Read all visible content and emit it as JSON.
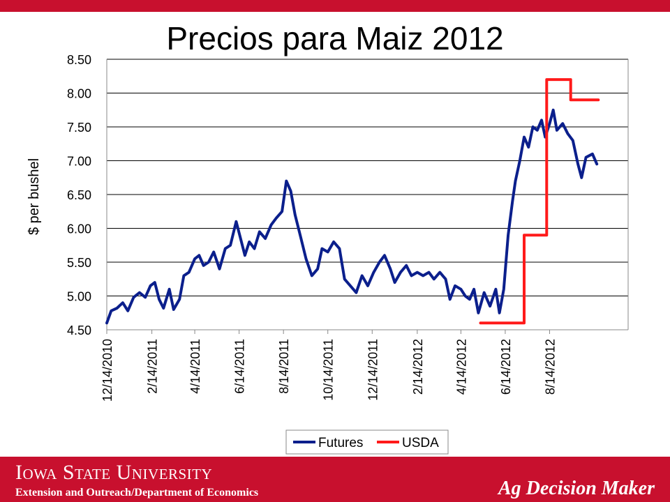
{
  "slide": {
    "title": "Precios para Maiz 2012",
    "university": "Iowa State University",
    "department": "Extension and Outreach/Department  of Economics",
    "brand": "Ag Decision Maker"
  },
  "colors": {
    "banner": "#c8102e",
    "futures": "#0b1f8c",
    "usda": "#ff1a1a",
    "grid": "#000000"
  },
  "chart_data": {
    "type": "line",
    "title": "",
    "xlabel": "",
    "ylabel": "$ per bushel",
    "ylim": [
      4.5,
      8.5
    ],
    "yticks": [
      "4.50",
      "5.00",
      "5.50",
      "6.00",
      "6.50",
      "7.00",
      "7.50",
      "8.00",
      "8.50"
    ],
    "grid": true,
    "legend_position": "bottom",
    "x_tick_labels": [
      "12/14/2010",
      "2/14/2011",
      "4/14/2011",
      "6/14/2011",
      "8/14/2011",
      "10/14/2011",
      "12/14/2011",
      "2/14/2012",
      "4/14/2012",
      "6/14/2012",
      "8/14/2012"
    ],
    "x_range": [
      "2010-12-14",
      "2012-11-30"
    ],
    "series": [
      {
        "name": "Futures",
        "color": "#0b1f8c",
        "points": [
          [
            "2010-12-14",
            4.6
          ],
          [
            "2010-12-20",
            4.78
          ],
          [
            "2010-12-28",
            4.82
          ],
          [
            "2011-01-05",
            4.9
          ],
          [
            "2011-01-12",
            4.78
          ],
          [
            "2011-01-20",
            4.98
          ],
          [
            "2011-01-28",
            5.05
          ],
          [
            "2011-02-05",
            4.98
          ],
          [
            "2011-02-12",
            5.15
          ],
          [
            "2011-02-18",
            5.2
          ],
          [
            "2011-02-24",
            4.95
          ],
          [
            "2011-03-02",
            4.82
          ],
          [
            "2011-03-10",
            5.1
          ],
          [
            "2011-03-16",
            4.8
          ],
          [
            "2011-03-24",
            4.95
          ],
          [
            "2011-03-30",
            5.3
          ],
          [
            "2011-04-06",
            5.35
          ],
          [
            "2011-04-14",
            5.55
          ],
          [
            "2011-04-20",
            5.6
          ],
          [
            "2011-04-26",
            5.45
          ],
          [
            "2011-05-03",
            5.5
          ],
          [
            "2011-05-10",
            5.65
          ],
          [
            "2011-05-18",
            5.4
          ],
          [
            "2011-05-26",
            5.7
          ],
          [
            "2011-06-02",
            5.75
          ],
          [
            "2011-06-10",
            6.1
          ],
          [
            "2011-06-16",
            5.85
          ],
          [
            "2011-06-22",
            5.6
          ],
          [
            "2011-06-28",
            5.8
          ],
          [
            "2011-07-05",
            5.7
          ],
          [
            "2011-07-12",
            5.95
          ],
          [
            "2011-07-20",
            5.85
          ],
          [
            "2011-07-28",
            6.05
          ],
          [
            "2011-08-04",
            6.15
          ],
          [
            "2011-08-12",
            6.25
          ],
          [
            "2011-08-18",
            6.7
          ],
          [
            "2011-08-24",
            6.55
          ],
          [
            "2011-08-30",
            6.2
          ],
          [
            "2011-09-06",
            5.9
          ],
          [
            "2011-09-14",
            5.55
          ],
          [
            "2011-09-22",
            5.3
          ],
          [
            "2011-09-30",
            5.4
          ],
          [
            "2011-10-06",
            5.7
          ],
          [
            "2011-10-14",
            5.65
          ],
          [
            "2011-10-22",
            5.8
          ],
          [
            "2011-10-30",
            5.7
          ],
          [
            "2011-11-06",
            5.25
          ],
          [
            "2011-11-14",
            5.15
          ],
          [
            "2011-11-22",
            5.05
          ],
          [
            "2011-11-30",
            5.3
          ],
          [
            "2011-12-08",
            5.15
          ],
          [
            "2011-12-16",
            5.35
          ],
          [
            "2011-12-24",
            5.5
          ],
          [
            "2011-12-31",
            5.6
          ],
          [
            "2012-01-08",
            5.4
          ],
          [
            "2012-01-14",
            5.2
          ],
          [
            "2012-01-22",
            5.35
          ],
          [
            "2012-01-30",
            5.45
          ],
          [
            "2012-02-06",
            5.3
          ],
          [
            "2012-02-14",
            5.35
          ],
          [
            "2012-02-22",
            5.3
          ],
          [
            "2012-03-01",
            5.35
          ],
          [
            "2012-03-08",
            5.25
          ],
          [
            "2012-03-16",
            5.35
          ],
          [
            "2012-03-24",
            5.25
          ],
          [
            "2012-03-30",
            4.95
          ],
          [
            "2012-04-06",
            5.15
          ],
          [
            "2012-04-14",
            5.1
          ],
          [
            "2012-04-20",
            5.0
          ],
          [
            "2012-04-26",
            4.95
          ],
          [
            "2012-05-02",
            5.1
          ],
          [
            "2012-05-08",
            4.75
          ],
          [
            "2012-05-16",
            5.05
          ],
          [
            "2012-05-24",
            4.85
          ],
          [
            "2012-06-01",
            5.1
          ],
          [
            "2012-06-06",
            4.75
          ],
          [
            "2012-06-12",
            5.1
          ],
          [
            "2012-06-18",
            5.9
          ],
          [
            "2012-06-24",
            6.4
          ],
          [
            "2012-06-28",
            6.7
          ],
          [
            "2012-07-04",
            7.0
          ],
          [
            "2012-07-10",
            7.35
          ],
          [
            "2012-07-16",
            7.2
          ],
          [
            "2012-07-22",
            7.5
          ],
          [
            "2012-07-28",
            7.45
          ],
          [
            "2012-08-03",
            7.6
          ],
          [
            "2012-08-08",
            7.35
          ],
          [
            "2012-08-14",
            7.55
          ],
          [
            "2012-08-19",
            7.75
          ],
          [
            "2012-08-24",
            7.45
          ],
          [
            "2012-09-01",
            7.55
          ],
          [
            "2012-09-08",
            7.4
          ],
          [
            "2012-09-15",
            7.3
          ],
          [
            "2012-09-22",
            6.95
          ],
          [
            "2012-09-27",
            6.75
          ],
          [
            "2012-10-03",
            7.05
          ],
          [
            "2012-10-12",
            7.1
          ],
          [
            "2012-10-18",
            6.95
          ]
        ]
      },
      {
        "name": "USDA",
        "color": "#ff1a1a",
        "points": [
          [
            "2012-05-11",
            4.6
          ],
          [
            "2012-07-10",
            4.6
          ],
          [
            "2012-07-10",
            5.9
          ],
          [
            "2012-08-10",
            5.9
          ],
          [
            "2012-08-10",
            8.2
          ],
          [
            "2012-09-12",
            8.2
          ],
          [
            "2012-09-12",
            7.9
          ],
          [
            "2012-10-20",
            7.9
          ]
        ]
      }
    ]
  }
}
